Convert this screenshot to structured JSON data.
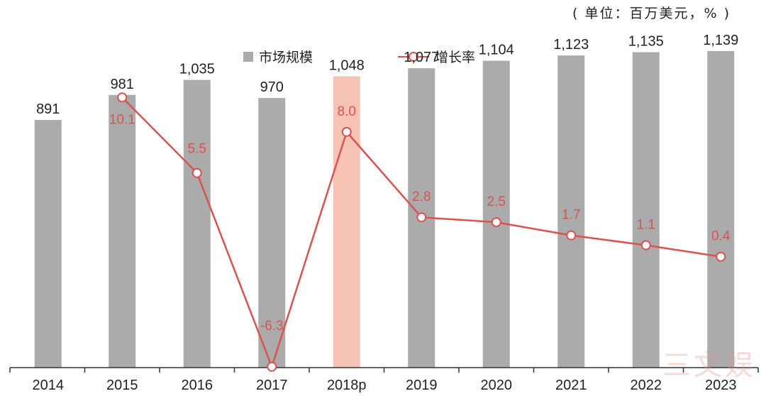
{
  "unit_label": "( 单位：百万美元，% )",
  "watermark": "三文娱",
  "colors": {
    "bar": "#ababab",
    "highlight_bar": "#f7c3b4",
    "line": "#d9534f",
    "axis": "#333333",
    "text": "#222222"
  },
  "chart_data": {
    "type": "bar+line",
    "categories": [
      "2014",
      "2015",
      "2016",
      "2017",
      "2018p",
      "2019",
      "2020",
      "2021",
      "2022",
      "2023"
    ],
    "highlight_index": 4,
    "series": [
      {
        "name": "市场规模",
        "type": "bar",
        "values": [
          891,
          981,
          1035,
          970,
          1048,
          1077,
          1104,
          1123,
          1135,
          1139
        ],
        "labels": [
          "891",
          "981",
          "1,035",
          "970",
          "1,048",
          "1,077",
          "1,104",
          "1,123",
          "1,135",
          "1,139"
        ]
      },
      {
        "name": "增长率",
        "type": "line",
        "values": [
          null,
          10.1,
          5.5,
          -6.3,
          8.0,
          2.8,
          2.5,
          1.7,
          1.1,
          0.4
        ],
        "labels": [
          "",
          "10.1",
          "5.5",
          "-6.3",
          "8.0",
          "2.8",
          "2.5",
          "1.7",
          "1.1",
          "0.4"
        ]
      }
    ],
    "bar_ylim": [
      0,
      1200
    ],
    "line_ylim": [
      -7,
      14
    ],
    "legend_position": "top-center"
  }
}
